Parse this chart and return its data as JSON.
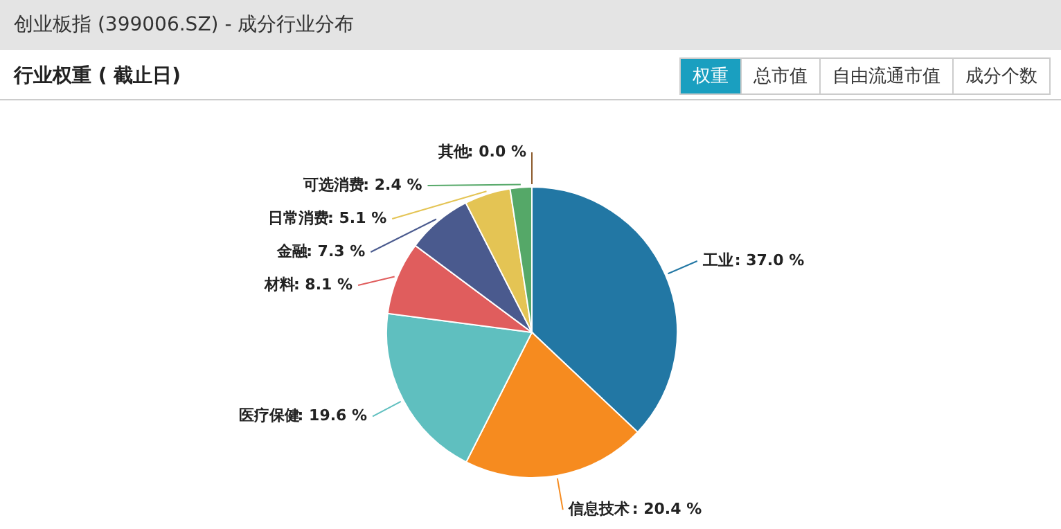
{
  "chart_data": {
    "type": "pie",
    "title": "创业板指 (399006.SZ) - 成分行业分布",
    "subtitle": "行业权重 ( 截止日)",
    "categories": [
      "工业",
      "信息技术",
      "医疗保健",
      "材料",
      "金融",
      "日常消费",
      "可选消费",
      "其他"
    ],
    "values": [
      37.0,
      20.4,
      19.6,
      8.1,
      7.3,
      5.1,
      2.4,
      0.0
    ],
    "colors": [
      "#2277a4",
      "#f68b1f",
      "#5fbfbf",
      "#e05d5d",
      "#4a5a8e",
      "#e4c454",
      "#55a868",
      "#8b5a2b"
    ],
    "value_labels": [
      ": 37.0 %",
      ": 20.4 %",
      ": 19.6 %",
      ": 8.1 %",
      ": 7.3 %",
      ": 5.1 %",
      ": 2.4 %",
      ": 0.0 %"
    ],
    "annotations": [
      "权重",
      "总市值",
      "自由流通市值",
      "成分个数"
    ]
  }
}
